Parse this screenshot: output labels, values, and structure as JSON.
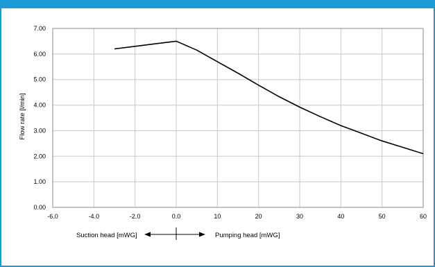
{
  "chart_data": {
    "type": "line",
    "title": "",
    "ylabel": "Flow rate [l/min]",
    "xlabel_left": "Suction head [mWG]",
    "xlabel_right": "Pumping head [mWG]",
    "ylim": [
      0,
      7
    ],
    "y_ticks": [
      "0.00",
      "1.00",
      "2.00",
      "3.00",
      "4.00",
      "5.00",
      "6.00",
      "7.00"
    ],
    "x_ticks": [
      "-6.0",
      "-4.0",
      "-2.0",
      "0.0",
      "10",
      "20",
      "30",
      "40",
      "50",
      "60"
    ],
    "grid": true,
    "colors": {
      "accent": "#1c9ad6",
      "line": "#000000",
      "grid": "#c8c8c8"
    },
    "series": [
      {
        "segments": [
          {
            "axis": "suction",
            "x": [
              -3.0,
              -2.0,
              -1.0,
              0.0
            ],
            "y": [
              6.2,
              6.3,
              6.4,
              6.5
            ]
          },
          {
            "axis": "pumping",
            "x": [
              0,
              5,
              10,
              15,
              20,
              25,
              30,
              35,
              40,
              45,
              50,
              55,
              60
            ],
            "y": [
              6.5,
              6.15,
              5.7,
              5.25,
              4.78,
              4.33,
              3.92,
              3.55,
              3.2,
              2.9,
              2.6,
              2.35,
              2.1
            ]
          }
        ]
      }
    ]
  }
}
